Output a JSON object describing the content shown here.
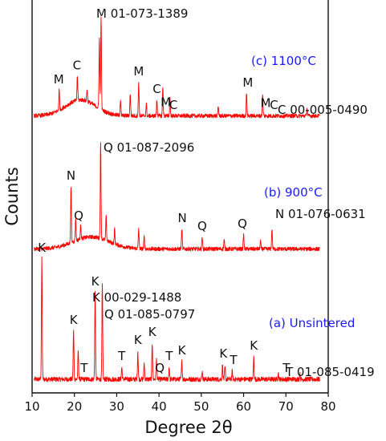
{
  "chart_data": {
    "type": "line",
    "xlabel": "Degree 2θ",
    "ylabel": "Counts",
    "xlim": [
      10,
      80
    ],
    "xticks": [
      10,
      20,
      30,
      40,
      50,
      60,
      70,
      80
    ],
    "line_color": "#ff0000",
    "grid": false,
    "series": [
      {
        "name": "(a) Unsintered",
        "baseline": 8,
        "noise": 6,
        "peaks": [
          [
            12.3,
            150
          ],
          [
            19.8,
            60
          ],
          [
            20.9,
            35
          ],
          [
            24.9,
            108
          ],
          [
            26.6,
            118
          ],
          [
            31.2,
            15
          ],
          [
            35.0,
            35
          ],
          [
            36.5,
            20
          ],
          [
            38.4,
            45
          ],
          [
            39.4,
            25
          ],
          [
            42.4,
            15
          ],
          [
            45.4,
            22
          ],
          [
            50.2,
            10
          ],
          [
            55.0,
            18
          ],
          [
            55.6,
            15
          ],
          [
            57.3,
            10
          ],
          [
            62.4,
            28
          ],
          [
            68.2,
            8
          ],
          [
            73.3,
            7
          ]
        ],
        "annotations": [
          {
            "label": "K",
            "x": 12.3
          },
          {
            "label": "K",
            "x": 19.8
          },
          {
            "label": "T",
            "x": 22.3
          },
          {
            "label": "K",
            "x": 24.9
          },
          {
            "label": "T",
            "x": 31.2
          },
          {
            "label": "K",
            "x": 35.0
          },
          {
            "label": "K",
            "x": 38.4
          },
          {
            "label": "Q",
            "x": 40.2
          },
          {
            "label": "T",
            "x": 42.4
          },
          {
            "label": "K",
            "x": 45.4
          },
          {
            "label": "K",
            "x": 55.2
          },
          {
            "label": "T",
            "x": 57.6
          },
          {
            "label": "K",
            "x": 62.4
          },
          {
            "label": "T",
            "x": 70.1
          }
        ],
        "references": [
          "K 00-029-1488",
          "Q 01-085-0797",
          "T 01-085-0419"
        ]
      },
      {
        "name": "(b) 900°C",
        "baseline": 5,
        "noise": 5,
        "hump": {
          "center": 24,
          "width": 6,
          "height": 15
        },
        "peaks": [
          [
            19.2,
            70
          ],
          [
            20.3,
            28
          ],
          [
            21.5,
            18
          ],
          [
            26.2,
            118
          ],
          [
            27.5,
            30
          ],
          [
            29.5,
            18
          ],
          [
            35.2,
            25
          ],
          [
            36.5,
            15
          ],
          [
            45.4,
            25
          ],
          [
            50.2,
            15
          ],
          [
            55.4,
            12
          ],
          [
            60.0,
            18
          ],
          [
            64.0,
            10
          ],
          [
            66.7,
            25
          ]
        ],
        "annotations": [
          {
            "label": "N",
            "x": 19.2
          },
          {
            "label": "Q",
            "x": 21.0
          },
          {
            "label": "N",
            "x": 45.5
          },
          {
            "label": "Q",
            "x": 50.2
          },
          {
            "label": "Q",
            "x": 59.7
          }
        ],
        "references": [
          "Q 01-087-2096",
          "N 01-076-0631"
        ]
      },
      {
        "name": "(c) 1100°C",
        "baseline": 8,
        "noise": 5,
        "hump": {
          "center": 21.5,
          "width": 5,
          "height": 20
        },
        "peaks": [
          [
            16.4,
            25
          ],
          [
            20.7,
            30
          ],
          [
            23.0,
            15
          ],
          [
            25.9,
            90
          ],
          [
            26.3,
            118
          ],
          [
            30.9,
            20
          ],
          [
            33.2,
            28
          ],
          [
            35.2,
            42
          ],
          [
            37.0,
            15
          ],
          [
            39.5,
            20
          ],
          [
            40.9,
            35
          ],
          [
            42.6,
            22
          ],
          [
            54.0,
            12
          ],
          [
            60.7,
            28
          ],
          [
            64.5,
            25
          ],
          [
            75.0,
            10
          ]
        ],
        "annotations": [
          {
            "label": "M",
            "x": 16.3
          },
          {
            "label": "C",
            "x": 20.6
          },
          {
            "label": "M",
            "x": 35.2
          },
          {
            "label": "C",
            "x": 39.5
          },
          {
            "label": "M",
            "x": 41.6
          },
          {
            "label": "C",
            "x": 43.4
          },
          {
            "label": "M",
            "x": 61.0
          },
          {
            "label": "M",
            "x": 65.2
          },
          {
            "label": "C",
            "x": 67.2
          }
        ],
        "references": [
          "M 01-073-1389",
          "C 00-005-0490"
        ]
      }
    ]
  }
}
